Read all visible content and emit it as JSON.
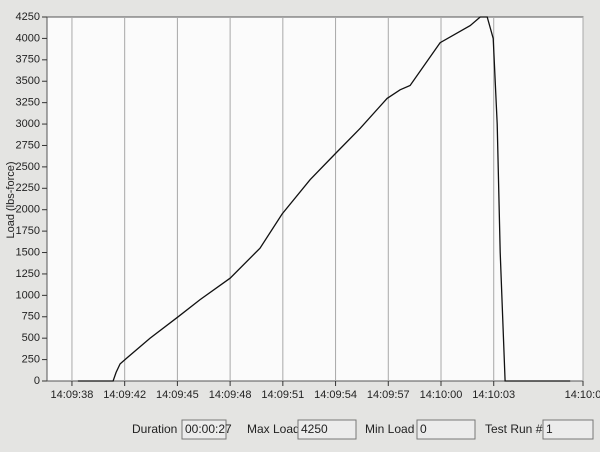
{
  "chart_data": {
    "type": "line",
    "y_label": "Load (lbs-force)",
    "x": [
      39.24,
      41.24,
      41.41,
      41.64,
      41.92,
      43.34,
      44.94,
      46.19,
      47.9,
      49.6,
      50.86,
      52.45,
      53.87,
      55.3,
      56.83,
      57.57,
      58.14,
      59.85,
      61.56,
      62.13,
      62.53,
      62.87,
      63.1,
      63.27,
      63.55,
      67.25
    ],
    "series": [
      {
        "color": "#111111",
        "values": [
          0,
          0,
          100,
          200,
          250,
          500,
          750,
          950,
          1200,
          1550,
          1950,
          2350,
          2650,
          2950,
          3300,
          3400,
          3450,
          3950,
          4150,
          4250,
          4250,
          4000,
          3000,
          1500,
          0,
          0
        ]
      }
    ],
    "xlim": [
      37.48,
      67.98
    ],
    "ylim": [
      0,
      4250
    ],
    "xticks": [
      {
        "value": 38.9,
        "label": "14:09:38"
      },
      {
        "value": 41.9,
        "label": "14:09:42"
      },
      {
        "value": 44.9,
        "label": "14:09:45"
      },
      {
        "value": 47.9,
        "label": "14:09:48"
      },
      {
        "value": 50.9,
        "label": "14:09:51"
      },
      {
        "value": 53.9,
        "label": "14:09:54"
      },
      {
        "value": 56.9,
        "label": "14:09:57"
      },
      {
        "value": 59.9,
        "label": "14:10:00"
      },
      {
        "value": 62.9,
        "label": "14:10:03"
      },
      {
        "value": 67.98,
        "label": "14:10:0"
      }
    ],
    "yticks": [
      0,
      250,
      500,
      750,
      1000,
      1250,
      1500,
      1750,
      2000,
      2250,
      2500,
      2750,
      3000,
      3250,
      3500,
      3750,
      4000,
      4250
    ],
    "grid": "x"
  },
  "status": [
    {
      "label": "Duration",
      "value": "00:00:27"
    },
    {
      "label": "Max Load",
      "value": "4250"
    },
    {
      "label": "Min Load",
      "value": "0"
    },
    {
      "label": "Test Run #",
      "value": "1"
    }
  ]
}
